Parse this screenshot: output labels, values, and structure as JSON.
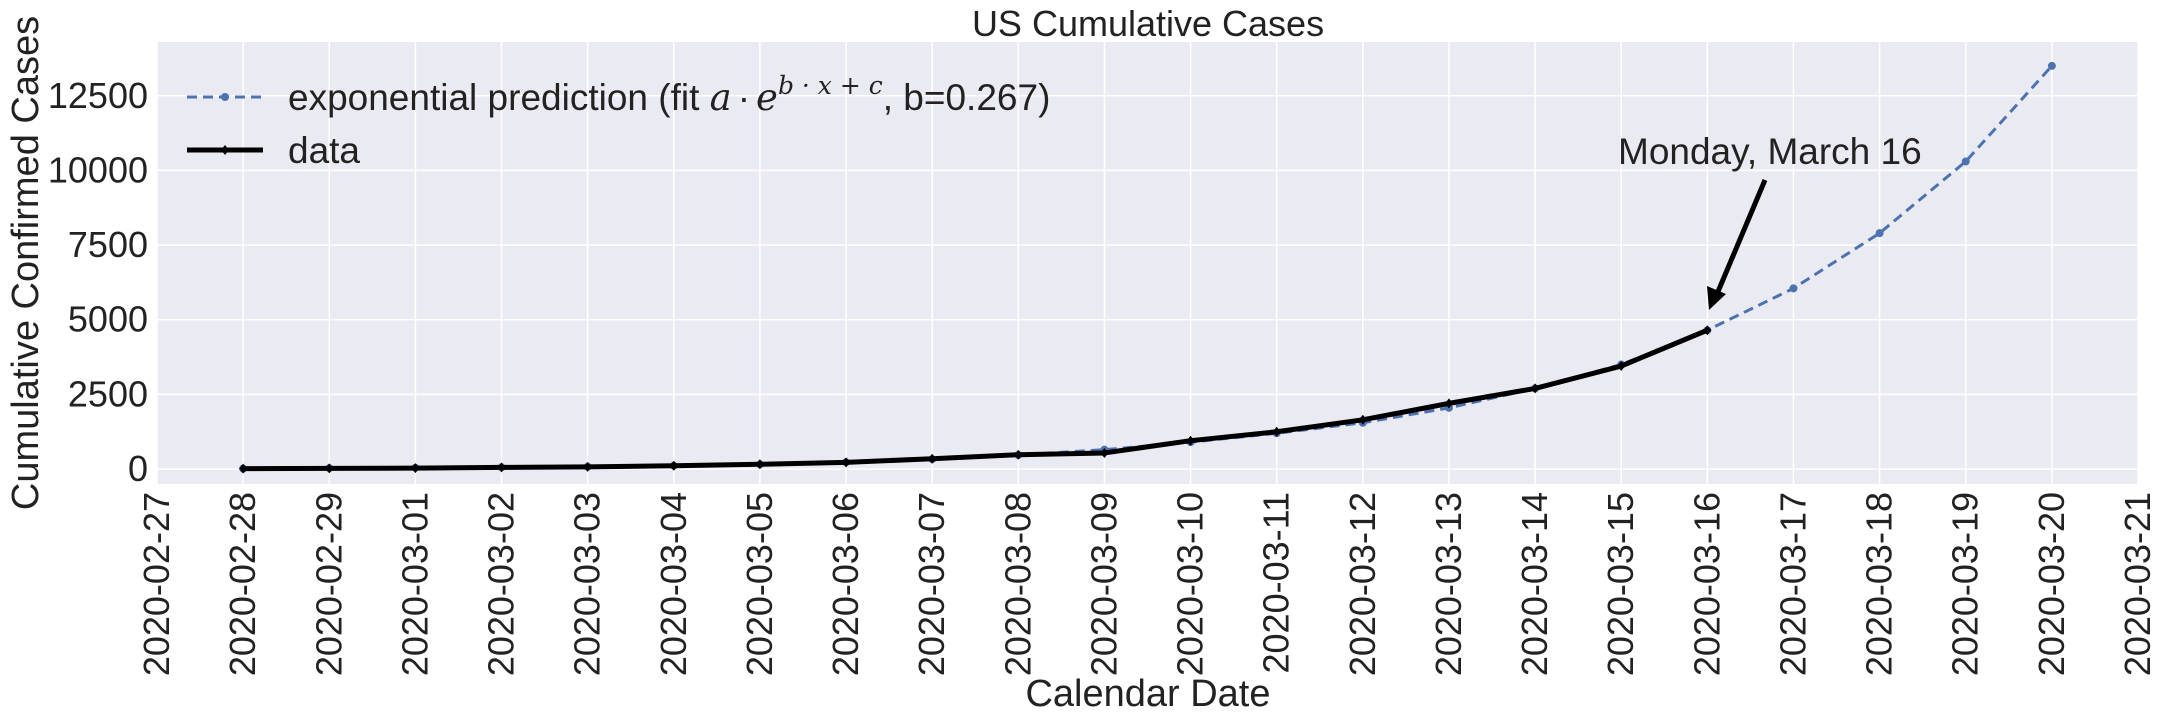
{
  "chart_data": {
    "type": "line",
    "title": "US Cumulative Cases",
    "xlabel": "Calendar Date",
    "ylabel": "Cumulative Confirmed Cases",
    "x_ticks": [
      "2020-02-27",
      "2020-02-28",
      "2020-02-29",
      "2020-03-01",
      "2020-03-02",
      "2020-03-03",
      "2020-03-04",
      "2020-03-05",
      "2020-03-06",
      "2020-03-07",
      "2020-03-08",
      "2020-03-09",
      "2020-03-10",
      "2020-03-11",
      "2020-03-12",
      "2020-03-13",
      "2020-03-14",
      "2020-03-15",
      "2020-03-16",
      "2020-03-17",
      "2020-03-18",
      "2020-03-19",
      "2020-03-20",
      "2020-03-21"
    ],
    "y_ticks": [
      0,
      2500,
      5000,
      7500,
      10000,
      12500
    ],
    "y_tick_labels": [
      "0",
      "2500",
      "5000",
      "7500",
      "10000",
      "12500"
    ],
    "xlim": [
      "2020-02-27",
      "2020-03-21"
    ],
    "ylim": [
      -500,
      14300
    ],
    "grid": true,
    "legend_position": "top-left",
    "series": [
      {
        "name": "exponential prediction (fit a·e^{b·x + c}, b=0.267)",
        "style": "dashed",
        "marker": "dot",
        "color": "#4c72b0",
        "x": [
          "2020-02-28",
          "2020-02-29",
          "2020-03-01",
          "2020-03-02",
          "2020-03-03",
          "2020-03-04",
          "2020-03-05",
          "2020-03-06",
          "2020-03-07",
          "2020-03-08",
          "2020-03-09",
          "2020-03-10",
          "2020-03-11",
          "2020-03-12",
          "2020-03-13",
          "2020-03-14",
          "2020-03-15",
          "2020-03-16",
          "2020-03-17",
          "2020-03-18",
          "2020-03-19",
          "2020-03-20"
        ],
        "values": [
          15,
          30,
          45,
          60,
          80,
          110,
          160,
          230,
          330,
          470,
          650,
          900,
          1200,
          1550,
          2050,
          2700,
          3500,
          4650,
          6050,
          7900,
          10300,
          13500
        ]
      },
      {
        "name": "data",
        "style": "solid",
        "marker": "diamond",
        "color": "#000000",
        "x": [
          "2020-02-28",
          "2020-02-29",
          "2020-03-01",
          "2020-03-02",
          "2020-03-03",
          "2020-03-04",
          "2020-03-05",
          "2020-03-06",
          "2020-03-07",
          "2020-03-08",
          "2020-03-09",
          "2020-03-10",
          "2020-03-11",
          "2020-03-12",
          "2020-03-13",
          "2020-03-14",
          "2020-03-15",
          "2020-03-16"
        ],
        "values": [
          15,
          25,
          30,
          55,
          75,
          110,
          160,
          225,
          345,
          480,
          540,
          950,
          1250,
          1650,
          2200,
          2700,
          3450,
          4650
        ]
      }
    ],
    "legend": {
      "prediction_prefix": "exponential prediction (fit ",
      "prediction_math_a": "a",
      "prediction_math_dot": "·",
      "prediction_math_e": "e",
      "prediction_math_exp": "b · x + c",
      "prediction_suffix": ", b=0.267)",
      "data_label": "data"
    },
    "annotation": {
      "text": "Monday, March 16",
      "target_x": "2020-03-16",
      "target_y": 5400
    },
    "colors": {
      "plot_background": "#eaeaf2",
      "grid": "#ffffff",
      "prediction": "#4c72b0",
      "data": "#000000"
    }
  }
}
